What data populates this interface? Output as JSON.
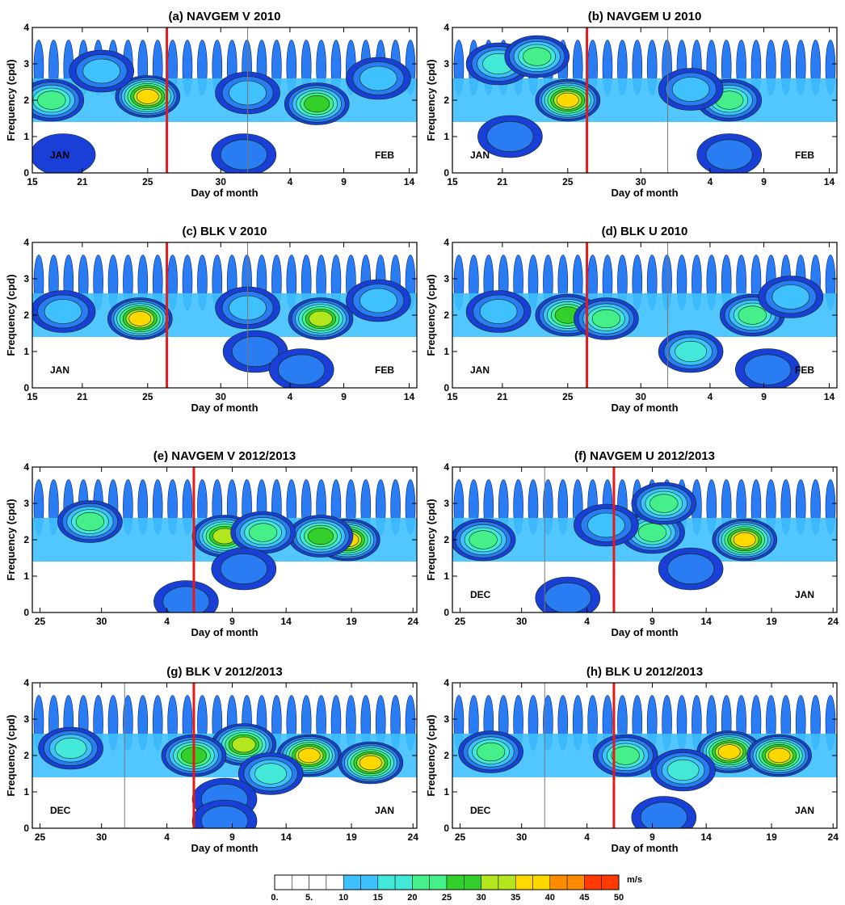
{
  "chart_data": [
    {
      "type": "heatmap",
      "title": "(a) NAVGEM V 2010",
      "xlabel": "Day of month",
      "ylabel": "Frequency (cpd)",
      "x_ticks": [
        "15",
        "21",
        "25",
        "30",
        "4",
        "9",
        "14"
      ],
      "y_ticks": [
        "0",
        "1",
        "2",
        "3",
        "4"
      ],
      "ylim": [
        0,
        4
      ],
      "months": [
        "JAN",
        "FEB"
      ],
      "blobs": [
        {
          "x": 0.05,
          "y": 2.0,
          "amp": 33
        },
        {
          "x": 0.3,
          "y": 2.1,
          "amp": 45
        },
        {
          "x": 0.74,
          "y": 1.9,
          "amp": 36
        },
        {
          "x": 0.56,
          "y": 2.2,
          "amp": 22
        },
        {
          "x": 0.18,
          "y": 2.8,
          "amp": 24
        },
        {
          "x": 0.9,
          "y": 2.6,
          "amp": 22
        },
        {
          "x": 0.55,
          "y": 0.5,
          "amp": 16
        },
        {
          "x": 0.08,
          "y": 0.5,
          "amp": 14
        }
      ]
    },
    {
      "type": "heatmap",
      "title": "(b) NAVGEM U 2010",
      "xlabel": "Day of month",
      "ylabel": "Frequency (cpd)",
      "x_ticks": [
        "15",
        "21",
        "25",
        "30",
        "4",
        "9",
        "14"
      ],
      "y_ticks": [
        "0",
        "1",
        "2",
        "3",
        "4"
      ],
      "ylim": [
        0,
        4
      ],
      "months": [
        "JAN",
        "FEB"
      ],
      "blobs": [
        {
          "x": 0.12,
          "y": 3.0,
          "amp": 28
        },
        {
          "x": 0.22,
          "y": 3.2,
          "amp": 30
        },
        {
          "x": 0.3,
          "y": 2.0,
          "amp": 45
        },
        {
          "x": 0.72,
          "y": 2.0,
          "amp": 30
        },
        {
          "x": 0.62,
          "y": 2.3,
          "amp": 24
        },
        {
          "x": 0.15,
          "y": 1.0,
          "amp": 16
        },
        {
          "x": 0.72,
          "y": 0.5,
          "amp": 15
        }
      ]
    },
    {
      "type": "heatmap",
      "title": "(c) BLK V 2010",
      "xlabel": "Day of month",
      "ylabel": "Frequency (cpd)",
      "x_ticks": [
        "15",
        "21",
        "25",
        "30",
        "4",
        "9",
        "14"
      ],
      "y_ticks": [
        "0",
        "1",
        "2",
        "3",
        "4"
      ],
      "ylim": [
        0,
        4
      ],
      "months": [
        "JAN",
        "FEB"
      ],
      "blobs": [
        {
          "x": 0.28,
          "y": 1.9,
          "amp": 46
        },
        {
          "x": 0.75,
          "y": 1.9,
          "amp": 43
        },
        {
          "x": 0.08,
          "y": 2.1,
          "amp": 24
        },
        {
          "x": 0.56,
          "y": 2.2,
          "amp": 24
        },
        {
          "x": 0.58,
          "y": 1.0,
          "amp": 18
        },
        {
          "x": 0.9,
          "y": 2.4,
          "amp": 24
        },
        {
          "x": 0.7,
          "y": 0.5,
          "amp": 15
        }
      ]
    },
    {
      "type": "heatmap",
      "title": "(d) BLK U 2010",
      "xlabel": "Day of month",
      "ylabel": "Frequency (cpd)",
      "x_ticks": [
        "15",
        "21",
        "25",
        "30",
        "4",
        "9",
        "14"
      ],
      "y_ticks": [
        "0",
        "1",
        "2",
        "3",
        "4"
      ],
      "ylim": [
        0,
        4
      ],
      "months": [
        "JAN",
        "FEB"
      ],
      "blobs": [
        {
          "x": 0.3,
          "y": 2.0,
          "amp": 38
        },
        {
          "x": 0.4,
          "y": 1.9,
          "amp": 30
        },
        {
          "x": 0.78,
          "y": 2.0,
          "amp": 30
        },
        {
          "x": 0.62,
          "y": 1.0,
          "amp": 25
        },
        {
          "x": 0.12,
          "y": 2.1,
          "amp": 24
        },
        {
          "x": 0.88,
          "y": 2.5,
          "amp": 22
        },
        {
          "x": 0.82,
          "y": 0.5,
          "amp": 15
        }
      ]
    },
    {
      "type": "heatmap",
      "title": "(e) NAVGEM V 2012/2013",
      "xlabel": "Day of month",
      "ylabel": "Frequency (cpd)",
      "x_ticks": [
        "25",
        "30",
        "4",
        "9",
        "14",
        "19",
        "24"
      ],
      "y_ticks": [
        "0",
        "1",
        "2",
        "3",
        "4"
      ],
      "ylim": [
        0,
        4
      ],
      "months": [
        "",
        ""
      ],
      "blobs": [
        {
          "x": 0.82,
          "y": 2.0,
          "amp": 47
        },
        {
          "x": 0.75,
          "y": 2.1,
          "amp": 38
        },
        {
          "x": 0.5,
          "y": 2.1,
          "amp": 40
        },
        {
          "x": 0.15,
          "y": 2.5,
          "amp": 34
        },
        {
          "x": 0.6,
          "y": 2.2,
          "amp": 30
        },
        {
          "x": 0.55,
          "y": 1.2,
          "amp": 18
        },
        {
          "x": 0.4,
          "y": 0.3,
          "amp": 16
        }
      ]
    },
    {
      "type": "heatmap",
      "title": "(f) NAVGEM U 2012/2013",
      "xlabel": "Day of month",
      "ylabel": "Frequency (cpd)",
      "x_ticks": [
        "25",
        "30",
        "4",
        "9",
        "14",
        "19",
        "24"
      ],
      "y_ticks": [
        "0",
        "1",
        "2",
        "3",
        "4"
      ],
      "ylim": [
        0,
        4
      ],
      "months": [
        "DEC",
        "JAN"
      ],
      "blobs": [
        {
          "x": 0.76,
          "y": 2.0,
          "amp": 47
        },
        {
          "x": 0.52,
          "y": 2.2,
          "amp": 32
        },
        {
          "x": 0.55,
          "y": 3.0,
          "amp": 30
        },
        {
          "x": 0.08,
          "y": 2.0,
          "amp": 30
        },
        {
          "x": 0.4,
          "y": 2.4,
          "amp": 24
        },
        {
          "x": 0.62,
          "y": 1.2,
          "amp": 18
        },
        {
          "x": 0.3,
          "y": 0.4,
          "amp": 16
        }
      ]
    },
    {
      "type": "heatmap",
      "title": "(g) BLK V 2012/2013",
      "xlabel": "Day of month",
      "ylabel": "Frequency (cpd)",
      "x_ticks": [
        "25",
        "30",
        "4",
        "9",
        "14",
        "19",
        "24"
      ],
      "y_ticks": [
        "0",
        "1",
        "2",
        "3",
        "4"
      ],
      "ylim": [
        0,
        4
      ],
      "months": [
        "DEC",
        "JAN"
      ],
      "blobs": [
        {
          "x": 0.72,
          "y": 2.0,
          "amp": 48
        },
        {
          "x": 0.88,
          "y": 1.8,
          "amp": 46
        },
        {
          "x": 0.55,
          "y": 2.3,
          "amp": 40
        },
        {
          "x": 0.42,
          "y": 2.0,
          "amp": 35
        },
        {
          "x": 0.1,
          "y": 2.2,
          "amp": 28
        },
        {
          "x": 0.62,
          "y": 1.5,
          "amp": 28
        },
        {
          "x": 0.5,
          "y": 0.8,
          "amp": 18
        },
        {
          "x": 0.5,
          "y": 0.2,
          "amp": 16
        }
      ]
    },
    {
      "type": "heatmap",
      "title": "(h) BLK U 2012/2013",
      "xlabel": "Day of month",
      "ylabel": "Frequency (cpd)",
      "x_ticks": [
        "25",
        "30",
        "4",
        "9",
        "14",
        "19",
        "24"
      ],
      "y_ticks": [
        "0",
        "1",
        "2",
        "3",
        "4"
      ],
      "ylim": [
        0,
        4
      ],
      "months": [
        "DEC",
        "JAN"
      ],
      "blobs": [
        {
          "x": 0.72,
          "y": 2.1,
          "amp": 48
        },
        {
          "x": 0.85,
          "y": 2.0,
          "amp": 48
        },
        {
          "x": 0.45,
          "y": 2.0,
          "amp": 34
        },
        {
          "x": 0.1,
          "y": 2.1,
          "amp": 30
        },
        {
          "x": 0.6,
          "y": 1.6,
          "amp": 26
        },
        {
          "x": 0.55,
          "y": 0.3,
          "amp": 16
        }
      ]
    }
  ],
  "colorbar": {
    "unit": "m/s",
    "tick_labels": [
      "0.",
      "5.",
      "10",
      "15",
      "20",
      "25",
      "30",
      "35",
      "40",
      "45",
      "50"
    ],
    "colors": [
      "#ffffff",
      "#ffffff",
      "#1a3fd6",
      "#2a7cf2",
      "#3fc0ff",
      "#43e8d8",
      "#45f08a",
      "#33cf2a",
      "#b4e61e",
      "#ffd800",
      "#ff8c00",
      "#ff3a00",
      "#e30000"
    ]
  }
}
